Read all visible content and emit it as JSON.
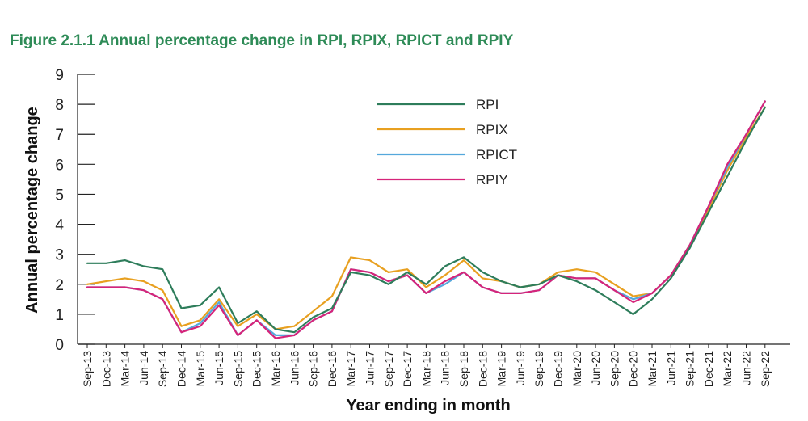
{
  "page": {
    "title": "Figure 2.1.1 Annual percentage change in RPI, RPIX, RPICT and RPIY"
  },
  "chart_data": {
    "type": "line",
    "title": "Figure 2.1.1 Annual percentage change in RPI, RPIX, RPICT and RPIY",
    "xlabel": "Year ending in month",
    "ylabel": "Annual percentage change",
    "ylim": [
      0,
      9
    ],
    "yticks": [
      0,
      1,
      2,
      3,
      4,
      5,
      6,
      7,
      8,
      9
    ],
    "grid": false,
    "legend_position": "top-center",
    "x": [
      "Sep-13",
      "Dec-13",
      "Mar-14",
      "Jun-14",
      "Sep-14",
      "Dec-14",
      "Mar-15",
      "Jun-15",
      "Sep-15",
      "Dec-15",
      "Mar-16",
      "Jun-16",
      "Sep-16",
      "Dec-16",
      "Mar-17",
      "Jun-17",
      "Sep-17",
      "Dec-17",
      "Mar-18",
      "Jun-18",
      "Sep-18",
      "Dec-18",
      "Mar-19",
      "Jun-19",
      "Sep-19",
      "Dec-19",
      "Mar-20",
      "Jun-20",
      "Sep-20",
      "Dec-20",
      "Mar-21",
      "Jun-21",
      "Sep-21",
      "Dec-21",
      "Mar-22",
      "Jun-22",
      "Sep-22"
    ],
    "series": [
      {
        "name": "RPI",
        "color": "#2e7d5b",
        "values": [
          2.7,
          2.7,
          2.8,
          2.6,
          2.5,
          1.2,
          1.3,
          1.9,
          0.7,
          1.1,
          0.5,
          0.4,
          0.9,
          1.2,
          2.4,
          2.3,
          2.0,
          2.4,
          2.0,
          2.6,
          2.9,
          2.4,
          2.1,
          1.9,
          2.0,
          2.3,
          2.1,
          1.8,
          1.4,
          1.0,
          1.5,
          2.2,
          3.2,
          4.4,
          5.6,
          6.8,
          7.9
        ]
      },
      {
        "name": "RPIX",
        "color": "#e8a020",
        "values": [
          2.0,
          2.1,
          2.2,
          2.1,
          1.8,
          0.6,
          0.8,
          1.5,
          0.6,
          1.0,
          0.5,
          0.6,
          1.1,
          1.6,
          2.9,
          2.8,
          2.4,
          2.5,
          1.9,
          2.3,
          2.8,
          2.2,
          2.1,
          1.9,
          2.0,
          2.4,
          2.5,
          2.4,
          2.0,
          1.6,
          1.7,
          2.3,
          3.3,
          4.5,
          5.8,
          6.9,
          7.9
        ]
      },
      {
        "name": "RPICT",
        "color": "#55a8dc",
        "values": [
          1.9,
          1.9,
          1.9,
          1.8,
          1.5,
          0.4,
          0.7,
          1.4,
          0.3,
          0.8,
          0.3,
          0.3,
          0.8,
          1.1,
          2.5,
          2.4,
          2.1,
          2.3,
          1.7,
          2.0,
          2.4,
          1.9,
          1.7,
          1.7,
          1.8,
          2.3,
          2.2,
          2.2,
          1.8,
          1.5,
          1.7,
          2.3,
          3.3,
          4.6,
          5.9,
          7.0,
          8.1
        ]
      },
      {
        "name": "RPIY",
        "color": "#d6247a",
        "values": [
          1.9,
          1.9,
          1.9,
          1.8,
          1.5,
          0.4,
          0.6,
          1.3,
          0.3,
          0.8,
          0.2,
          0.3,
          0.8,
          1.1,
          2.5,
          2.4,
          2.1,
          2.3,
          1.7,
          2.1,
          2.4,
          1.9,
          1.7,
          1.7,
          1.8,
          2.3,
          2.2,
          2.2,
          1.8,
          1.4,
          1.7,
          2.3,
          3.3,
          4.6,
          6.0,
          7.0,
          8.1
        ]
      }
    ]
  }
}
